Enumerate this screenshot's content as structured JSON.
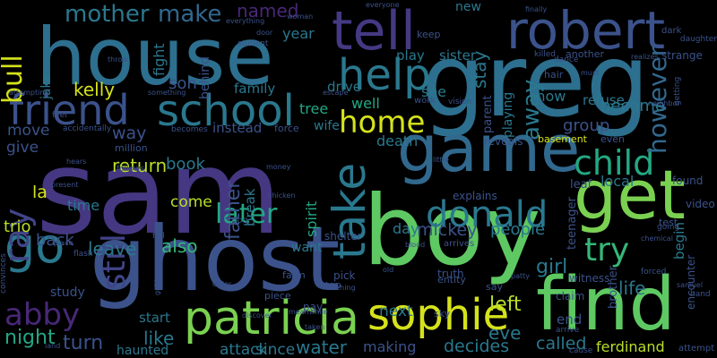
{
  "palette": {
    "background": "#000000",
    "purple": "#3b1f6e",
    "indigo": "#453781",
    "blue": "#2d6f8e",
    "teal": "#218f8c",
    "green": "#35b779",
    "lime": "#7ad151",
    "yellow": "#d5e21a",
    "pale": "#b8de29",
    "gray": "#6b6b6b"
  },
  "words": [
    {
      "text": "sam",
      "color": "#453781"
    },
    {
      "text": "greg",
      "color": "#2d6f8e"
    },
    {
      "text": "house",
      "color": "#2d6f8e"
    },
    {
      "text": "boy",
      "color": "#5ec962"
    },
    {
      "text": "find",
      "color": "#5ec962"
    },
    {
      "text": "ghost",
      "color": "#3b528b"
    },
    {
      "text": "get",
      "color": "#7ad151"
    },
    {
      "text": "game",
      "color": "#31688e"
    },
    {
      "text": "tell",
      "color": "#443983"
    },
    {
      "text": "robert",
      "color": "#3b528b"
    },
    {
      "text": "patricia",
      "color": "#7ad151"
    },
    {
      "text": "sophie",
      "color": "#d5e21a"
    },
    {
      "text": "school",
      "color": "#2a788e"
    },
    {
      "text": "friend",
      "color": "#3b528b"
    },
    {
      "text": "help",
      "color": "#2a788e"
    },
    {
      "text": "take",
      "color": "#2a788e"
    },
    {
      "text": "go",
      "color": "#2a788e"
    },
    {
      "text": "donald",
      "color": "#2a788e"
    },
    {
      "text": "child",
      "color": "#22a884"
    },
    {
      "text": "try",
      "color": "#35b779"
    },
    {
      "text": "home",
      "color": "#d5e21a"
    },
    {
      "text": "ray",
      "color": "#414487"
    },
    {
      "text": "abby",
      "color": "#482878"
    },
    {
      "text": "later",
      "color": "#22a884"
    },
    {
      "text": "still",
      "color": "#414487"
    },
    {
      "text": "bull",
      "color": "#d5e21a"
    },
    {
      "text": "mother",
      "color": "#2a788e"
    },
    {
      "text": "make",
      "color": "#31688e"
    },
    {
      "text": "however",
      "color": "#31688e"
    },
    {
      "text": "away",
      "color": "#2a788e"
    },
    {
      "text": "kelly",
      "color": "#d5e21a"
    },
    {
      "text": "return",
      "color": "#b8de29"
    },
    {
      "text": "father",
      "color": "#3b528b"
    },
    {
      "text": "night",
      "color": "#22a884"
    },
    {
      "text": "turn",
      "color": "#3b528b"
    },
    {
      "text": "like",
      "color": "#2a788e"
    },
    {
      "text": "attack",
      "color": "#2a788e"
    },
    {
      "text": "since",
      "color": "#2a788e"
    },
    {
      "text": "water",
      "color": "#2a788e"
    },
    {
      "text": "making",
      "color": "#3b528b"
    },
    {
      "text": "decides",
      "color": "#2a788e"
    },
    {
      "text": "called",
      "color": "#2a788e"
    },
    {
      "text": "ferdinand",
      "color": "#b8de29"
    },
    {
      "text": "eve",
      "color": "#2a788e"
    },
    {
      "text": "left",
      "color": "#b8de29"
    },
    {
      "text": "next",
      "color": "#2a788e"
    },
    {
      "text": "life",
      "color": "#2a788e"
    },
    {
      "text": "girl",
      "color": "#2a788e"
    },
    {
      "text": "people",
      "color": "#2a788e"
    },
    {
      "text": "mickey",
      "color": "#3b528b"
    },
    {
      "text": "day",
      "color": "#2a788e"
    },
    {
      "text": "book",
      "color": "#2a788e"
    },
    {
      "text": "come",
      "color": "#b8de29"
    },
    {
      "text": "also",
      "color": "#35b779"
    },
    {
      "text": "leave",
      "color": "#2a788e"
    },
    {
      "text": "back",
      "color": "#3b528b"
    },
    {
      "text": "trio",
      "color": "#b8de29"
    },
    {
      "text": "time",
      "color": "#2a788e"
    },
    {
      "text": "la",
      "color": "#d5e21a"
    },
    {
      "text": "give",
      "color": "#3b528b"
    },
    {
      "text": "move",
      "color": "#3b528b"
    },
    {
      "text": "way",
      "color": "#3b528b"
    },
    {
      "text": "son",
      "color": "#3b528b"
    },
    {
      "text": "named",
      "color": "#482878"
    },
    {
      "text": "year",
      "color": "#2a788e"
    },
    {
      "text": "see",
      "color": "#2a788e"
    },
    {
      "text": "new",
      "color": "#2a788e"
    },
    {
      "text": "show",
      "color": "#2a788e"
    },
    {
      "text": "become",
      "color": "#2a788e"
    },
    {
      "text": "stay",
      "color": "#2a788e"
    },
    {
      "text": "play",
      "color": "#2a788e"
    },
    {
      "text": "sister",
      "color": "#2a788e"
    },
    {
      "text": "drive",
      "color": "#2a788e"
    },
    {
      "text": "family",
      "color": "#2a788e"
    },
    {
      "text": "fight",
      "color": "#2a788e"
    },
    {
      "text": "jake",
      "color": "#2a788e"
    },
    {
      "text": "behind",
      "color": "#3b528b"
    },
    {
      "text": "tree",
      "color": "#22a884"
    },
    {
      "text": "well",
      "color": "#22a884"
    },
    {
      "text": "wife",
      "color": "#2a788e"
    },
    {
      "text": "death",
      "color": "#2a788e"
    },
    {
      "text": "group",
      "color": "#3b528b"
    },
    {
      "text": "refuse",
      "color": "#2a788e"
    },
    {
      "text": "playing",
      "color": "#2a788e"
    },
    {
      "text": "local",
      "color": "#2a788e"
    },
    {
      "text": "begin",
      "color": "#2a788e"
    },
    {
      "text": "break",
      "color": "#2a788e"
    },
    {
      "text": "spirit",
      "color": "#22a884"
    },
    {
      "text": "want",
      "color": "#2a788e"
    },
    {
      "text": "instead",
      "color": "#3b528b"
    },
    {
      "text": "start",
      "color": "#2a788e"
    },
    {
      "text": "haunted",
      "color": "#2a788e"
    },
    {
      "text": "study",
      "color": "#3b528b"
    },
    {
      "text": "parent",
      "color": "#3b528b"
    },
    {
      "text": "teenager",
      "color": "#3b528b"
    },
    {
      "text": "end",
      "color": "#3b528b"
    },
    {
      "text": "brother",
      "color": "#3b528b"
    },
    {
      "text": "encounter",
      "color": "#3b528b"
    },
    {
      "text": "strange",
      "color": "#3b528b"
    },
    {
      "text": "leaf",
      "color": "#3b528b"
    },
    {
      "text": "found",
      "color": "#3b528b"
    },
    {
      "text": "video",
      "color": "#3b528b"
    },
    {
      "text": "test",
      "color": "#3b528b"
    },
    {
      "text": "even",
      "color": "#3b528b"
    },
    {
      "text": "basement",
      "color": "#d5e21a"
    },
    {
      "text": "reveals",
      "color": "#3b528b"
    },
    {
      "text": "explains",
      "color": "#3b528b"
    },
    {
      "text": "arrives",
      "color": "#3b528b"
    },
    {
      "text": "shelter",
      "color": "#3b528b"
    },
    {
      "text": "truth",
      "color": "#3b528b"
    },
    {
      "text": "entity",
      "color": "#3b528b"
    },
    {
      "text": "witness",
      "color": "#3b528b"
    },
    {
      "text": "claim",
      "color": "#3b528b"
    },
    {
      "text": "say",
      "color": "#3b528b"
    },
    {
      "text": "pay",
      "color": "#3b528b"
    },
    {
      "text": "sky",
      "color": "#3b528b"
    },
    {
      "text": "farm",
      "color": "#3b528b"
    },
    {
      "text": "piece",
      "color": "#3b528b"
    },
    {
      "text": "pick",
      "color": "#3b528b"
    },
    {
      "text": "stop",
      "color": "#3b528b"
    },
    {
      "text": "dog",
      "color": "#3b528b"
    },
    {
      "text": "million",
      "color": "#3b528b"
    },
    {
      "text": "hair",
      "color": "#3b528b"
    },
    {
      "text": "work",
      "color": "#3b528b"
    },
    {
      "text": "vision",
      "color": "#3b528b"
    },
    {
      "text": "force",
      "color": "#3b528b"
    },
    {
      "text": "keep",
      "color": "#3b528b"
    },
    {
      "text": "another",
      "color": "#3b528b"
    },
    {
      "text": "killed",
      "color": "#3b528b"
    },
    {
      "text": "dance",
      "color": "#3b528b"
    },
    {
      "text": "convinces",
      "color": "#3b528b"
    },
    {
      "text": "fall",
      "color": "#3b528b"
    },
    {
      "text": "flash",
      "color": "#3b528b"
    },
    {
      "text": "follows",
      "color": "#3b528b"
    },
    {
      "text": "becomes",
      "color": "#3b528b"
    },
    {
      "text": "accidentally",
      "color": "#3b528b"
    },
    {
      "text": "feel",
      "color": "#3b528b"
    },
    {
      "text": "attempting",
      "color": "#3b528b"
    },
    {
      "text": "student",
      "color": "#3b528b"
    },
    {
      "text": "woman",
      "color": "#3b528b"
    },
    {
      "text": "everything",
      "color": "#3b528b"
    },
    {
      "text": "everyone",
      "color": "#3b528b"
    },
    {
      "text": "finally",
      "color": "#3b528b"
    },
    {
      "text": "daughter",
      "color": "#3b528b"
    },
    {
      "text": "dark",
      "color": "#3b528b"
    },
    {
      "text": "realizes",
      "color": "#3b528b"
    },
    {
      "text": "must",
      "color": "#3b528b"
    },
    {
      "text": "getting",
      "color": "#3b528b"
    },
    {
      "text": "neighbor",
      "color": "#3b528b"
    },
    {
      "text": "chemical",
      "color": "#3b528b"
    },
    {
      "text": "going",
      "color": "#3b528b"
    },
    {
      "text": "samuel",
      "color": "#3b528b"
    },
    {
      "text": "hand",
      "color": "#3b528b"
    },
    {
      "text": "forced",
      "color": "#3b528b"
    },
    {
      "text": "arrive",
      "color": "#3b528b"
    },
    {
      "text": "cause",
      "color": "#3b528b"
    },
    {
      "text": "attempt",
      "color": "#3b528b"
    },
    {
      "text": "patty",
      "color": "#3b528b"
    },
    {
      "text": "blood",
      "color": "#3b528b"
    },
    {
      "text": "old",
      "color": "#3b528b"
    },
    {
      "text": "discover",
      "color": "#3b528b"
    },
    {
      "text": "taken",
      "color": "#3b528b"
    },
    {
      "text": "meanwhile",
      "color": "#3b528b"
    },
    {
      "text": "land",
      "color": "#3b528b"
    },
    {
      "text": "hears",
      "color": "#3b528b"
    },
    {
      "text": "present",
      "color": "#3b528b"
    },
    {
      "text": "money",
      "color": "#3b528b"
    },
    {
      "text": "chicken",
      "color": "#3b528b"
    },
    {
      "text": "escape",
      "color": "#3b528b"
    },
    {
      "text": "throw",
      "color": "#3b528b"
    },
    {
      "text": "something",
      "color": "#3b528b"
    },
    {
      "text": "little",
      "color": "#3b528b"
    },
    {
      "text": "door",
      "color": "#3b528b"
    },
    {
      "text": "order",
      "color": "#3b528b"
    },
    {
      "text": "gold",
      "color": "#3b528b"
    },
    {
      "text": "place",
      "color": "#3b528b"
    },
    {
      "text": "thing",
      "color": "#3b528b"
    }
  ]
}
